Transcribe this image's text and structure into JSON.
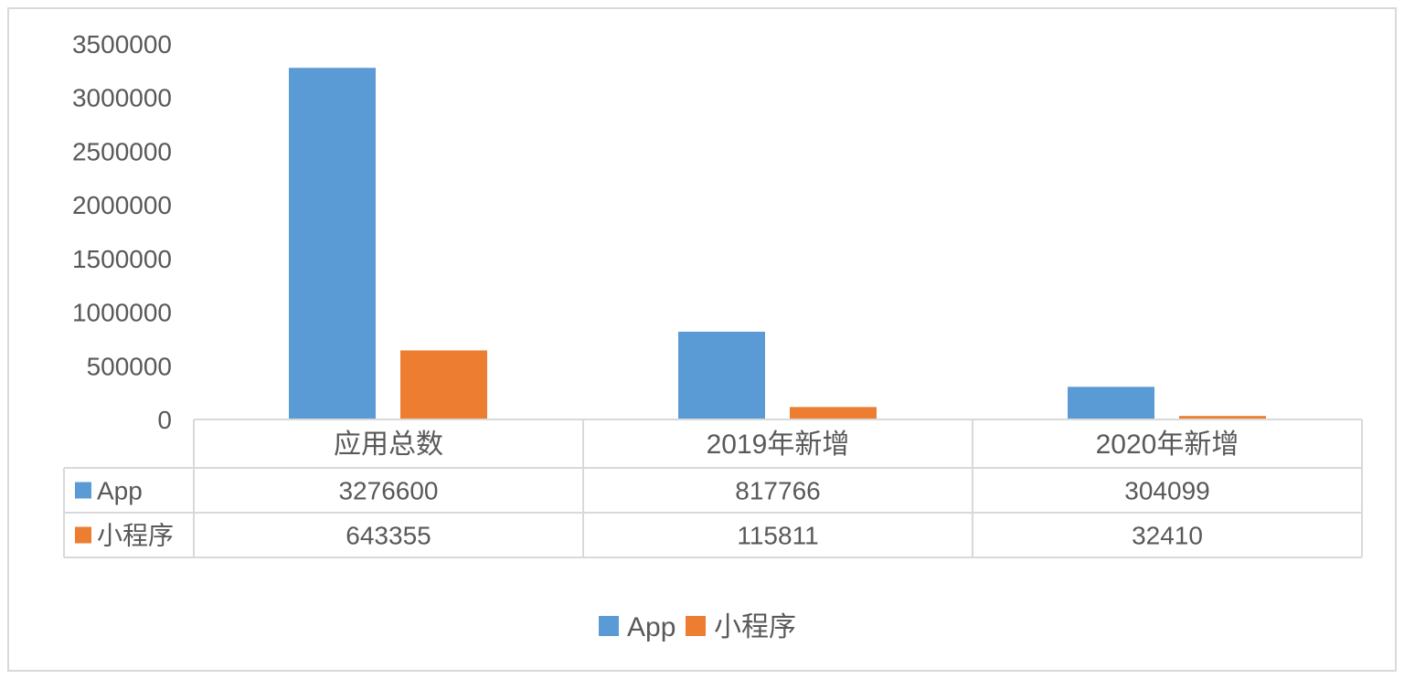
{
  "chart_data": {
    "type": "bar",
    "categories": [
      "应用总数",
      "2019年新增",
      "2020年新增"
    ],
    "series": [
      {
        "name": "App",
        "color": "#5b9bd5",
        "values": [
          3276600,
          817766,
          304099
        ]
      },
      {
        "name": "小程序",
        "color": "#ed7d31",
        "values": [
          643355,
          115811,
          32410
        ]
      }
    ],
    "ylim": [
      0,
      3500000
    ],
    "yticks": [
      0,
      500000,
      1000000,
      1500000,
      2000000,
      2500000,
      3000000,
      3500000
    ],
    "ytick_labels": [
      "0",
      "500000",
      "1000000",
      "1500000",
      "2000000",
      "2500000",
      "3000000",
      "3500000"
    ],
    "table_values": [
      [
        "3276600",
        "817766",
        "304099"
      ],
      [
        "643355",
        "115811",
        "32410"
      ]
    ],
    "grid": false,
    "legend_position": "bottom",
    "data_table": true
  }
}
